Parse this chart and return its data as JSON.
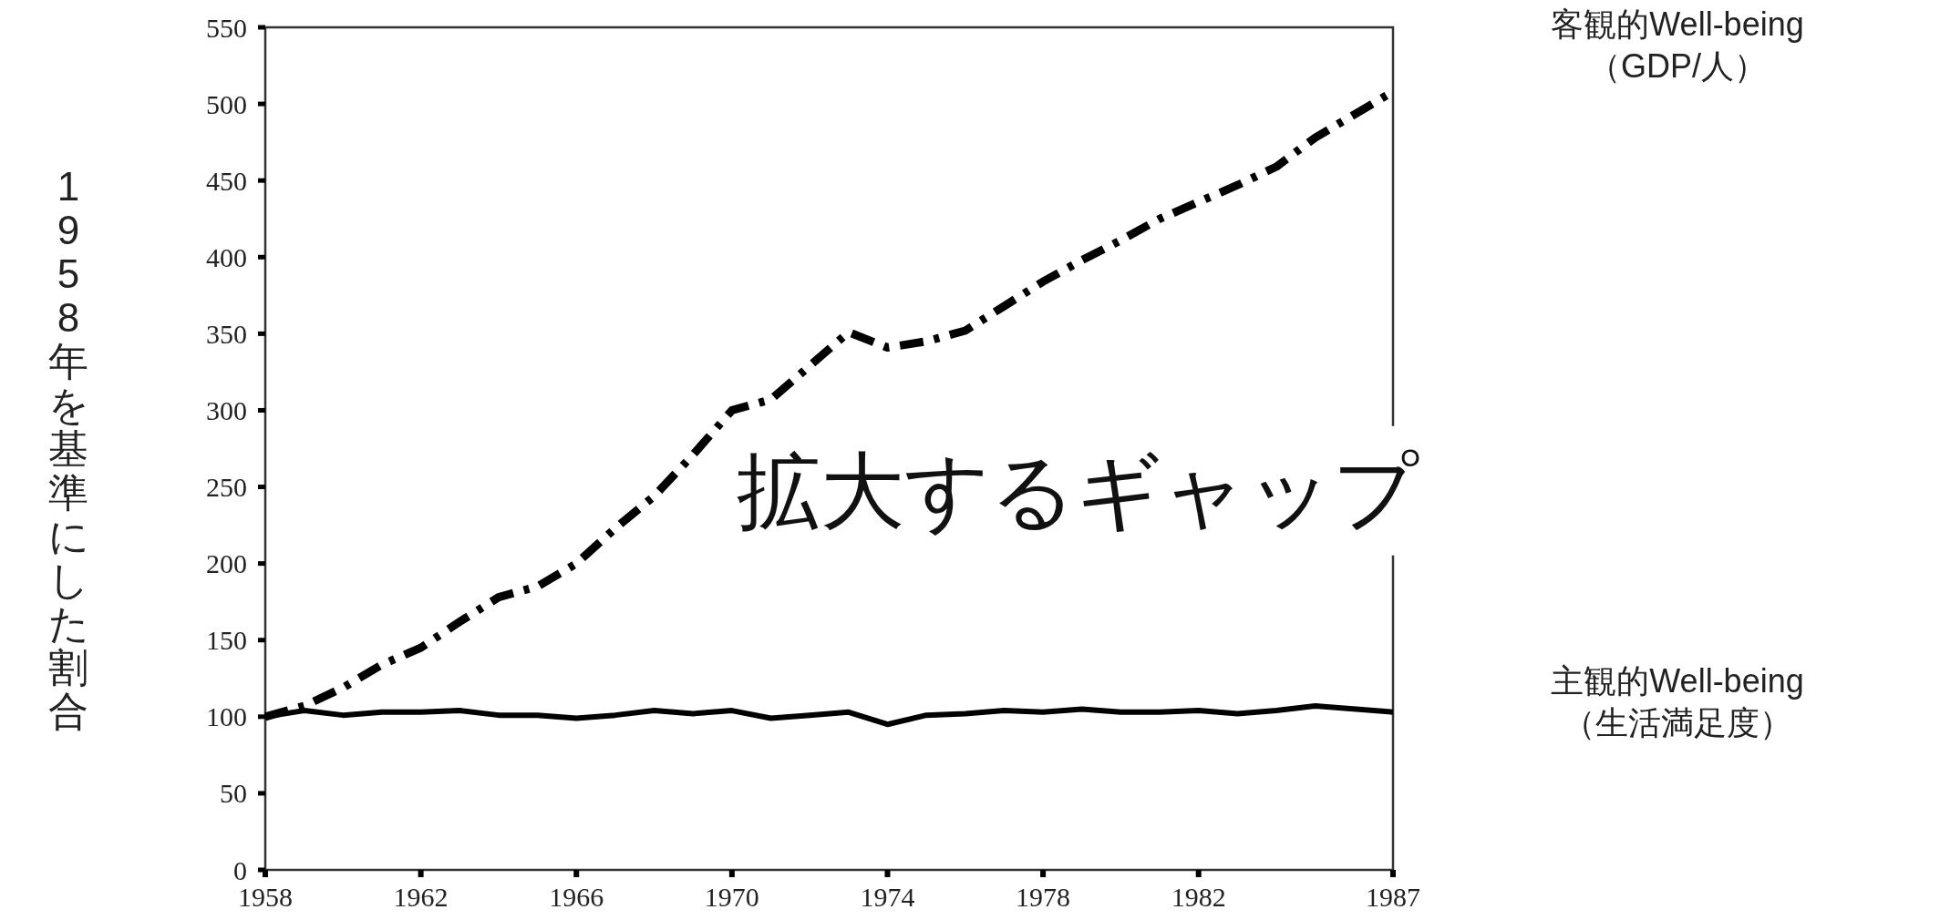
{
  "chart_data": {
    "type": "line",
    "ylabel": "1958年を基準にした割合",
    "x": [
      1958,
      1959,
      1960,
      1961,
      1962,
      1963,
      1964,
      1965,
      1966,
      1967,
      1968,
      1969,
      1970,
      1971,
      1972,
      1973,
      1974,
      1975,
      1976,
      1977,
      1978,
      1979,
      1980,
      1981,
      1982,
      1983,
      1984,
      1985,
      1987
    ],
    "series": [
      {
        "name": "客観的Well-being\n（GDP/人）",
        "color": "#000000",
        "line_style": "dashed",
        "values": [
          100,
          107,
          119,
          134,
          145,
          162,
          178,
          185,
          200,
          223,
          244,
          271,
          300,
          307,
          329,
          351,
          341,
          345,
          352,
          368,
          384,
          398,
          411,
          425,
          436,
          447,
          459,
          478,
          508
        ]
      },
      {
        "name": "主観的Well-being\n（生活満足度）",
        "color": "#000000",
        "line_style": "solid",
        "values": [
          100,
          104,
          101,
          103,
          103,
          104,
          101,
          101,
          99,
          101,
          104,
          102,
          104,
          99,
          101,
          103,
          95,
          101,
          102,
          104,
          103,
          105,
          103,
          103,
          104,
          102,
          104,
          107,
          103
        ]
      }
    ],
    "xlim": [
      1958,
      1987
    ],
    "xticks": [
      1958,
      1962,
      1966,
      1970,
      1974,
      1978,
      1982,
      1987
    ],
    "ylim": [
      0,
      550
    ],
    "yticks": [
      0,
      50,
      100,
      150,
      200,
      250,
      300,
      350,
      400,
      450,
      500,
      550
    ],
    "annotations": [
      "拡大するギャップ"
    ],
    "grid": false,
    "legend": false,
    "marker": "none"
  }
}
